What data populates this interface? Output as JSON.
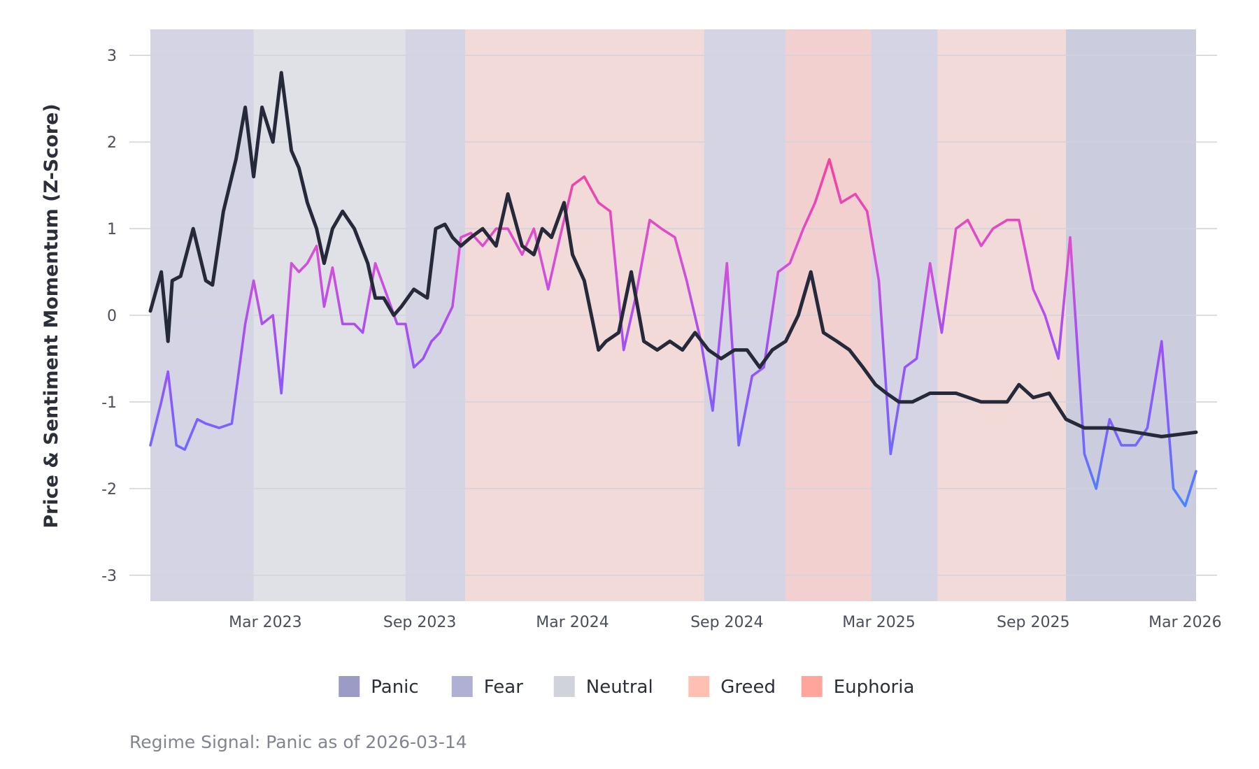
{
  "chart_data": {
    "type": "line",
    "title": "",
    "ylabel": "Price & Sentiment Momentum (Z-Score)",
    "xlabel": "",
    "x_range": [
      "2022-10-15",
      "2026-03-14"
    ],
    "ylim": [
      -3.3,
      3.3
    ],
    "y_ticks": [
      3,
      2,
      1,
      0,
      -1,
      -2,
      -3
    ],
    "y_tick_labels": [
      "3",
      "2",
      "1",
      "0",
      "-1",
      "-2",
      "-3"
    ],
    "x_ticks": [
      {
        "date": "2023-03-01",
        "label": "Mar 2023"
      },
      {
        "date": "2023-09-01",
        "label": "Sep 2023"
      },
      {
        "date": "2024-03-01",
        "label": "Mar 2024"
      },
      {
        "date": "2024-09-01",
        "label": "Sep 2024"
      },
      {
        "date": "2025-03-01",
        "label": "Mar 2025"
      },
      {
        "date": "2025-09-01",
        "label": "Sep 2025"
      },
      {
        "date": "2026-03-01",
        "label": "Mar 2026"
      }
    ],
    "grid": true,
    "legend_position": "bottom",
    "regimes": [
      {
        "name": "Panic",
        "color": "#9b9bc6"
      },
      {
        "name": "Fear",
        "color": "#b0b0d4"
      },
      {
        "name": "Neutral",
        "color": "#d0d3d9"
      },
      {
        "name": "Greed",
        "color": "#ffc0b3"
      },
      {
        "name": "Euphoria",
        "color": "#ffa59c"
      }
    ],
    "regime_periods": [
      {
        "start": "2022-10-15",
        "end": "2023-02-15",
        "regime": "Fear"
      },
      {
        "start": "2023-02-15",
        "end": "2023-08-15",
        "regime": "Neutral"
      },
      {
        "start": "2023-08-15",
        "end": "2023-10-25",
        "regime": "Fear"
      },
      {
        "start": "2023-10-25",
        "end": "2024-08-05",
        "regime": "Greed"
      },
      {
        "start": "2024-08-05",
        "end": "2024-11-10",
        "regime": "Fear"
      },
      {
        "start": "2024-11-10",
        "end": "2025-02-20",
        "regime": "Euphoria"
      },
      {
        "start": "2025-02-20",
        "end": "2025-05-10",
        "regime": "Fear"
      },
      {
        "start": "2025-05-10",
        "end": "2025-10-10",
        "regime": "Greed"
      },
      {
        "start": "2025-10-10",
        "end": "2026-03-14",
        "regime": "Panic"
      }
    ],
    "series": [
      {
        "name": "Price",
        "color": "#262939",
        "x": [
          "2022-10-15",
          "2022-10-28",
          "2022-11-05",
          "2022-11-10",
          "2022-11-20",
          "2022-12-05",
          "2022-12-20",
          "2022-12-28",
          "2023-01-10",
          "2023-01-25",
          "2023-02-05",
          "2023-02-15",
          "2023-02-25",
          "2023-03-10",
          "2023-03-20",
          "2023-04-01",
          "2023-04-10",
          "2023-04-20",
          "2023-05-01",
          "2023-05-10",
          "2023-05-20",
          "2023-06-01",
          "2023-06-15",
          "2023-07-01",
          "2023-07-10",
          "2023-07-20",
          "2023-08-01",
          "2023-08-10",
          "2023-08-25",
          "2023-09-10",
          "2023-09-20",
          "2023-10-01",
          "2023-10-10",
          "2023-10-20",
          "2023-11-01",
          "2023-11-15",
          "2023-12-01",
          "2023-12-15",
          "2024-01-01",
          "2024-01-15",
          "2024-01-25",
          "2024-02-05",
          "2024-02-20",
          "2024-03-01",
          "2024-03-15",
          "2024-04-01",
          "2024-04-10",
          "2024-04-25",
          "2024-05-10",
          "2024-05-25",
          "2024-06-10",
          "2024-06-25",
          "2024-07-10",
          "2024-07-25",
          "2024-08-10",
          "2024-08-25",
          "2024-09-10",
          "2024-09-25",
          "2024-10-10",
          "2024-10-25",
          "2024-11-10",
          "2024-11-25",
          "2024-12-10",
          "2024-12-25",
          "2025-01-10",
          "2025-01-25",
          "2025-02-10",
          "2025-02-25",
          "2025-03-10",
          "2025-03-25",
          "2025-04-10",
          "2025-05-01",
          "2025-06-01",
          "2025-07-01",
          "2025-08-01",
          "2025-08-15",
          "2025-09-01",
          "2025-09-20",
          "2025-10-10",
          "2025-11-01",
          "2025-12-01",
          "2026-01-01",
          "2026-02-01",
          "2026-03-14"
        ],
        "values": [
          0.05,
          0.5,
          -0.3,
          0.4,
          0.45,
          1.0,
          0.4,
          0.35,
          1.2,
          1.8,
          2.4,
          1.6,
          2.4,
          2.0,
          2.8,
          1.9,
          1.7,
          1.3,
          1.0,
          0.6,
          1.0,
          1.2,
          1.0,
          0.6,
          0.2,
          0.2,
          0.0,
          0.1,
          0.3,
          0.2,
          1.0,
          1.05,
          0.9,
          0.8,
          0.9,
          1.0,
          0.8,
          1.4,
          0.8,
          0.7,
          1.0,
          0.9,
          1.3,
          0.7,
          0.4,
          -0.4,
          -0.3,
          -0.2,
          0.5,
          -0.3,
          -0.4,
          -0.3,
          -0.4,
          -0.2,
          -0.4,
          -0.5,
          -0.4,
          -0.4,
          -0.6,
          -0.4,
          -0.3,
          0.0,
          0.5,
          -0.2,
          -0.3,
          -0.4,
          -0.6,
          -0.8,
          -0.9,
          -1.0,
          -1.0,
          -0.9,
          -0.9,
          -1.0,
          -1.0,
          -0.8,
          -0.95,
          -0.9,
          -1.2,
          -1.3,
          -1.3,
          -1.35,
          -1.4,
          -1.35
        ]
      },
      {
        "name": "Sentiment",
        "color": "#a855f7",
        "x": [
          "2022-10-15",
          "2022-10-28",
          "2022-11-05",
          "2022-11-15",
          "2022-11-25",
          "2022-12-10",
          "2022-12-20",
          "2023-01-05",
          "2023-01-20",
          "2023-02-05",
          "2023-02-15",
          "2023-02-25",
          "2023-03-10",
          "2023-03-20",
          "2023-04-01",
          "2023-04-10",
          "2023-04-20",
          "2023-05-01",
          "2023-05-10",
          "2023-05-20",
          "2023-06-01",
          "2023-06-15",
          "2023-06-25",
          "2023-07-10",
          "2023-07-25",
          "2023-08-05",
          "2023-08-15",
          "2023-08-25",
          "2023-09-05",
          "2023-09-15",
          "2023-09-25",
          "2023-10-10",
          "2023-10-20",
          "2023-11-01",
          "2023-11-15",
          "2023-12-01",
          "2023-12-15",
          "2024-01-01",
          "2024-01-15",
          "2024-02-01",
          "2024-02-15",
          "2024-03-01",
          "2024-03-15",
          "2024-04-01",
          "2024-04-15",
          "2024-05-01",
          "2024-05-15",
          "2024-06-01",
          "2024-06-15",
          "2024-07-01",
          "2024-07-15",
          "2024-08-01",
          "2024-08-15",
          "2024-09-01",
          "2024-09-15",
          "2024-10-01",
          "2024-10-15",
          "2024-11-01",
          "2024-11-15",
          "2024-12-01",
          "2024-12-15",
          "2025-01-01",
          "2025-01-15",
          "2025-02-01",
          "2025-02-15",
          "2025-03-01",
          "2025-03-15",
          "2025-04-01",
          "2025-04-15",
          "2025-05-01",
          "2025-05-15",
          "2025-06-01",
          "2025-06-15",
          "2025-07-01",
          "2025-07-15",
          "2025-08-01",
          "2025-08-15",
          "2025-09-01",
          "2025-09-15",
          "2025-10-01",
          "2025-10-15",
          "2025-11-01",
          "2025-11-15",
          "2025-12-01",
          "2025-12-15",
          "2026-01-01",
          "2026-01-15",
          "2026-02-01",
          "2026-02-15",
          "2026-03-01",
          "2026-03-14"
        ],
        "values": [
          -1.5,
          -1.0,
          -0.65,
          -1.5,
          -1.55,
          -1.2,
          -1.25,
          -1.3,
          -1.25,
          -0.1,
          0.4,
          -0.1,
          0.0,
          -0.9,
          0.6,
          0.5,
          0.6,
          0.8,
          0.1,
          0.55,
          -0.1,
          -0.1,
          -0.2,
          0.6,
          0.2,
          -0.1,
          -0.1,
          -0.6,
          -0.5,
          -0.3,
          -0.2,
          0.1,
          0.9,
          0.95,
          0.8,
          1.0,
          1.0,
          0.7,
          1.0,
          0.3,
          0.9,
          1.5,
          1.6,
          1.3,
          1.2,
          -0.4,
          0.2,
          1.1,
          1.0,
          0.9,
          0.4,
          -0.3,
          -1.1,
          0.6,
          -1.5,
          -0.7,
          -0.6,
          0.5,
          0.6,
          1.0,
          1.3,
          1.8,
          1.3,
          1.4,
          1.2,
          0.4,
          -1.6,
          -0.6,
          -0.5,
          0.6,
          -0.2,
          1.0,
          1.1,
          0.8,
          1.0,
          1.1,
          1.1,
          0.3,
          0.0,
          -0.5,
          0.9,
          -1.6,
          -2.0,
          -1.2,
          -1.5,
          -1.5,
          -1.3,
          -0.3,
          -2.0,
          -2.2,
          -1.8
        ]
      }
    ],
    "caption": "Regime Signal: Panic as of 2026-03-14"
  }
}
